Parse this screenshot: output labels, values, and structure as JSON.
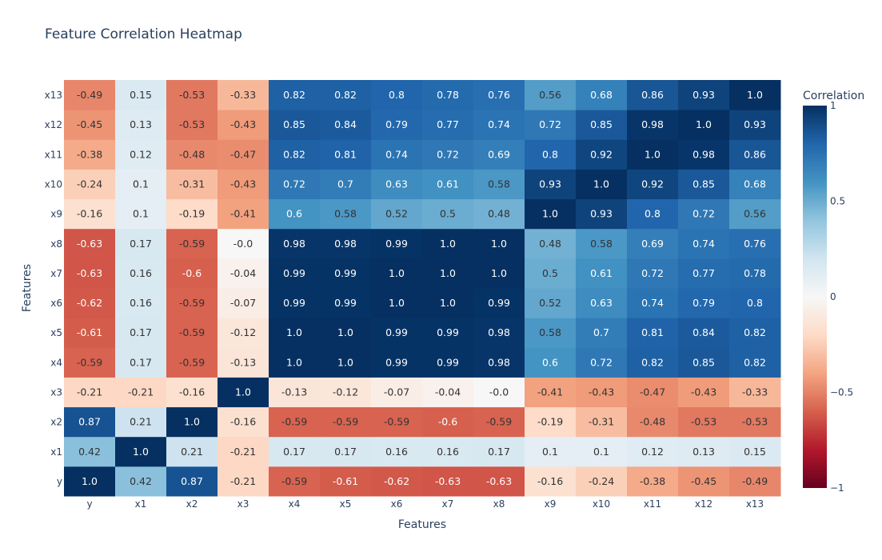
{
  "chart_data": {
    "type": "heatmap",
    "title": "Feature Correlation Heatmap",
    "xlabel": "Features",
    "ylabel": "Features",
    "x": [
      "y",
      "x1",
      "x2",
      "x3",
      "x4",
      "x5",
      "x6",
      "x7",
      "x8",
      "x9",
      "x10",
      "x11",
      "x12",
      "x13"
    ],
    "y": [
      "y",
      "x1",
      "x2",
      "x3",
      "x4",
      "x5",
      "x6",
      "x7",
      "x8",
      "x9",
      "x10",
      "x11",
      "x12",
      "x13"
    ],
    "z": [
      [
        1.0,
        0.42,
        0.87,
        -0.21,
        -0.59,
        -0.61,
        -0.62,
        -0.63,
        -0.63,
        -0.16,
        -0.24,
        -0.38,
        -0.45,
        -0.49
      ],
      [
        0.42,
        1.0,
        0.21,
        -0.21,
        0.17,
        0.17,
        0.16,
        0.16,
        0.17,
        0.1,
        0.1,
        0.12,
        0.13,
        0.15
      ],
      [
        0.87,
        0.21,
        1.0,
        -0.16,
        -0.59,
        -0.59,
        -0.59,
        -0.6,
        -0.59,
        -0.19,
        -0.31,
        -0.48,
        -0.53,
        -0.53
      ],
      [
        -0.21,
        -0.21,
        -0.16,
        1.0,
        -0.13,
        -0.12,
        -0.07,
        -0.04,
        -0.0,
        -0.41,
        -0.43,
        -0.47,
        -0.43,
        -0.33
      ],
      [
        -0.59,
        0.17,
        -0.59,
        -0.13,
        1.0,
        1.0,
        0.99,
        0.99,
        0.98,
        0.6,
        0.72,
        0.82,
        0.85,
        0.82
      ],
      [
        -0.61,
        0.17,
        -0.59,
        -0.12,
        1.0,
        1.0,
        0.99,
        0.99,
        0.98,
        0.58,
        0.7,
        0.81,
        0.84,
        0.82
      ],
      [
        -0.62,
        0.16,
        -0.59,
        -0.07,
        0.99,
        0.99,
        1.0,
        1.0,
        0.99,
        0.52,
        0.63,
        0.74,
        0.79,
        0.8
      ],
      [
        -0.63,
        0.16,
        -0.6,
        -0.04,
        0.99,
        0.99,
        1.0,
        1.0,
        1.0,
        0.5,
        0.61,
        0.72,
        0.77,
        0.78
      ],
      [
        -0.63,
        0.17,
        -0.59,
        -0.0,
        0.98,
        0.98,
        0.99,
        1.0,
        1.0,
        0.48,
        0.58,
        0.69,
        0.74,
        0.76
      ],
      [
        -0.16,
        0.1,
        -0.19,
        -0.41,
        0.6,
        0.58,
        0.52,
        0.5,
        0.48,
        1.0,
        0.93,
        0.8,
        0.72,
        0.56
      ],
      [
        -0.24,
        0.1,
        -0.31,
        -0.43,
        0.72,
        0.7,
        0.63,
        0.61,
        0.58,
        0.93,
        1.0,
        0.92,
        0.85,
        0.68
      ],
      [
        -0.38,
        0.12,
        -0.48,
        -0.47,
        0.82,
        0.81,
        0.74,
        0.72,
        0.69,
        0.8,
        0.92,
        1.0,
        0.98,
        0.86
      ],
      [
        -0.45,
        0.13,
        -0.53,
        -0.43,
        0.85,
        0.84,
        0.79,
        0.77,
        0.74,
        0.72,
        0.85,
        0.98,
        1.0,
        0.93
      ],
      [
        -0.49,
        0.15,
        -0.53,
        -0.33,
        0.82,
        0.82,
        0.8,
        0.78,
        0.76,
        0.56,
        0.68,
        0.86,
        0.93,
        1.0
      ]
    ],
    "zlim": [
      -1,
      1
    ],
    "colorscale": "RdBu",
    "colorbar": {
      "title": "Correlation",
      "ticks": [
        1,
        0.5,
        0,
        -0.5,
        -1
      ],
      "tick_labels": [
        "1",
        "0.5",
        "0",
        "−0.5",
        "−1"
      ]
    },
    "grid": false,
    "legend": "right"
  }
}
